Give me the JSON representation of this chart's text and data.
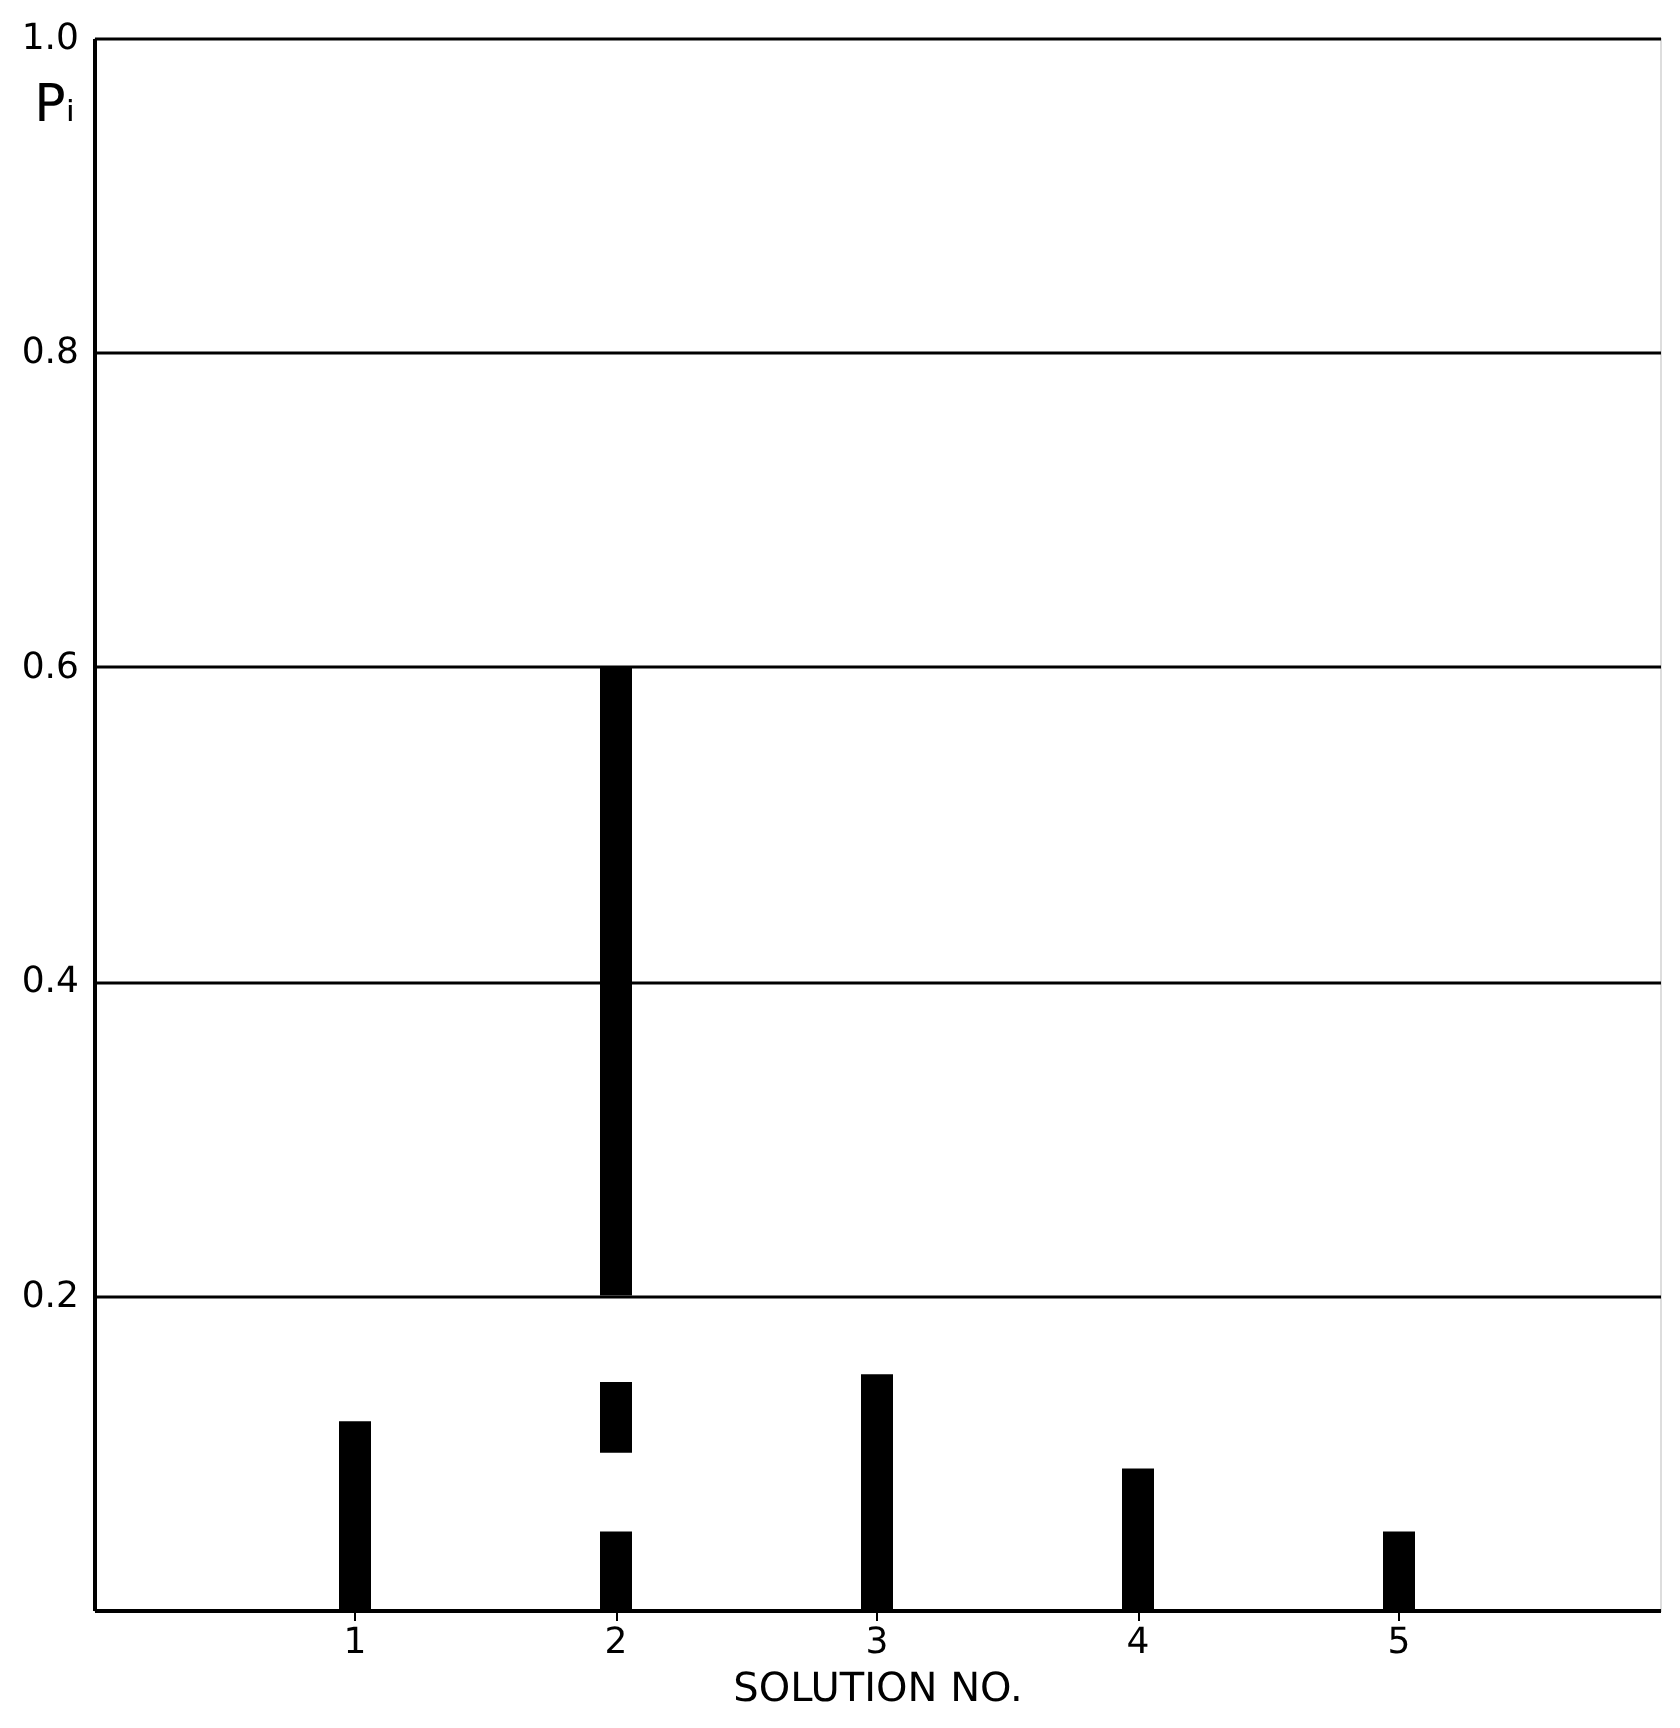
{
  "chart_data": {
    "type": "bar",
    "xlabel": "SOLUTION NO.",
    "ylabel": "Pᵢ",
    "categories": [
      "1",
      "2",
      "3",
      "4",
      "5"
    ],
    "series": [
      {
        "color": "#000000",
        "values": [
          0.12,
          0.05,
          0.15,
          0.09,
          0.05
        ],
        "base": [
          0,
          0,
          0,
          0,
          0
        ]
      },
      {
        "color": "#000000",
        "values": [
          null,
          0.045,
          null,
          null,
          null
        ],
        "base": [
          null,
          0.1,
          null,
          null,
          null
        ]
      },
      {
        "color": "#000000",
        "values": [
          null,
          0.4,
          null,
          null,
          null
        ],
        "base": [
          null,
          0.2,
          null,
          null,
          null
        ]
      }
    ],
    "ylim": [
      0,
      1.0
    ],
    "yticks": [
      {
        "value": 0.2,
        "label": "0.2"
      },
      {
        "value": 0.4,
        "label": "0.4"
      },
      {
        "value": 0.6,
        "label": "0.6"
      },
      {
        "value": 0.8,
        "label": "0.8"
      },
      {
        "value": 1.0,
        "label": "1.0"
      }
    ],
    "grid": "y"
  }
}
